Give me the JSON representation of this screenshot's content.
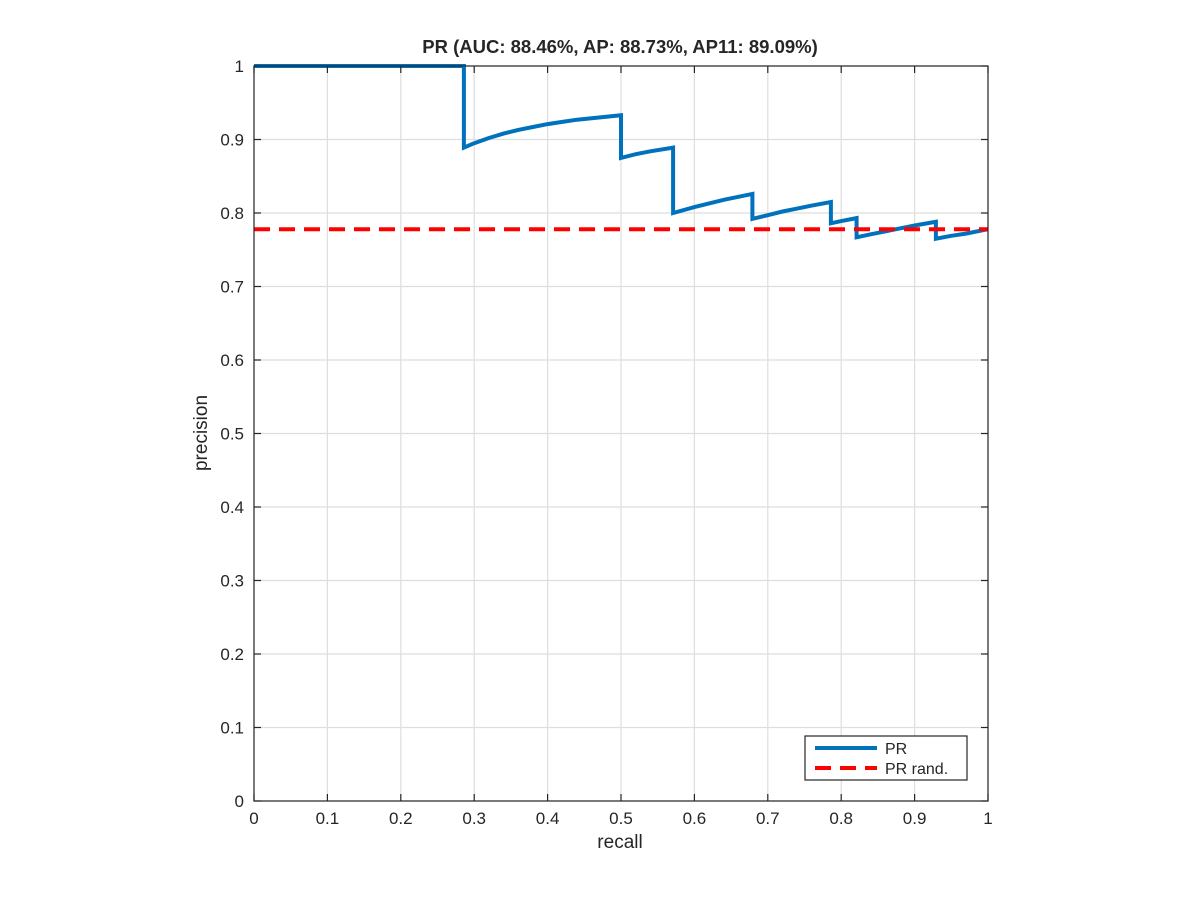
{
  "chart_data": {
    "type": "line",
    "title": "PR (AUC: 88.46%, AP: 88.73%, AP11: 89.09%)",
    "xlabel": "recall",
    "ylabel": "precision",
    "xlim": [
      0,
      1
    ],
    "ylim": [
      0,
      1
    ],
    "xticks": [
      0,
      0.1,
      0.2,
      0.3,
      0.4,
      0.5,
      0.6,
      0.7,
      0.8,
      0.9,
      1
    ],
    "yticks": [
      0,
      0.1,
      0.2,
      0.3,
      0.4,
      0.5,
      0.6,
      0.7,
      0.8,
      0.9,
      1
    ],
    "xtick_labels": [
      "0",
      "0.1",
      "0.2",
      "0.3",
      "0.4",
      "0.5",
      "0.6",
      "0.7",
      "0.8",
      "0.9",
      "1"
    ],
    "ytick_labels": [
      "0",
      "0.1",
      "0.2",
      "0.3",
      "0.4",
      "0.5",
      "0.6",
      "0.7",
      "0.8",
      "0.9",
      "1"
    ],
    "grid": true,
    "legend_position": "bottom-right",
    "series": [
      {
        "name": "PR",
        "color": "#0072bd",
        "style": "solid",
        "x": [
          0,
          0.286,
          0.286,
          0.3,
          0.32,
          0.34,
          0.36,
          0.38,
          0.4,
          0.42,
          0.44,
          0.46,
          0.48,
          0.5,
          0.5,
          0.52,
          0.54,
          0.571,
          0.571,
          0.6,
          0.62,
          0.64,
          0.66,
          0.679,
          0.679,
          0.7,
          0.72,
          0.74,
          0.76,
          0.786,
          0.786,
          0.8,
          0.821,
          0.821,
          0.84,
          0.86,
          0.88,
          0.9,
          0.929,
          0.929,
          0.95,
          0.97,
          1.0
        ],
        "y": [
          1,
          1,
          0.889,
          0.895,
          0.902,
          0.908,
          0.913,
          0.917,
          0.921,
          0.924,
          0.927,
          0.929,
          0.931,
          0.933,
          0.875,
          0.88,
          0.884,
          0.889,
          0.8,
          0.808,
          0.813,
          0.818,
          0.822,
          0.826,
          0.792,
          0.797,
          0.802,
          0.806,
          0.81,
          0.815,
          0.786,
          0.789,
          0.793,
          0.767,
          0.771,
          0.775,
          0.779,
          0.783,
          0.788,
          0.765,
          0.769,
          0.772,
          0.778
        ]
      },
      {
        "name": "PR rand.",
        "color": "#ff0000",
        "style": "dashed",
        "x": [
          0,
          1
        ],
        "y": [
          0.778,
          0.778
        ]
      }
    ]
  }
}
